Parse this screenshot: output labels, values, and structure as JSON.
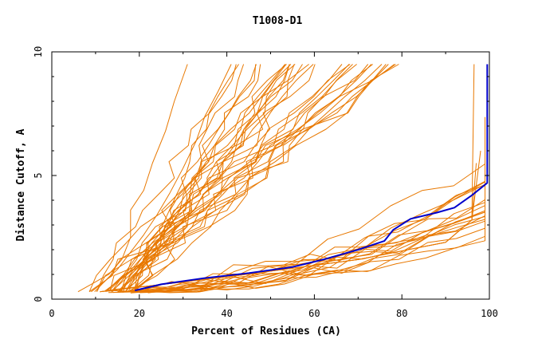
{
  "chart_data": {
    "type": "line",
    "title": "T1008-D1",
    "xlabel": "Percent of Residues (CA)",
    "ylabel": "Distance Cutoff, A",
    "xlim": [
      0,
      100
    ],
    "ylim": [
      0,
      10
    ],
    "xticks": [
      0,
      20,
      40,
      60,
      80,
      100
    ],
    "yticks": [
      0,
      5,
      10
    ],
    "grid": false,
    "legend": "none",
    "colors": {
      "others": "#e87800",
      "highlight": "#0000cc"
    },
    "highlight_series": [
      [
        19,
        0.35
      ],
      [
        25,
        0.6
      ],
      [
        35,
        0.85
      ],
      [
        45,
        1.05
      ],
      [
        55,
        1.3
      ],
      [
        62,
        1.6
      ],
      [
        70,
        2.0
      ],
      [
        76,
        2.35
      ],
      [
        78,
        2.8
      ],
      [
        82,
        3.25
      ],
      [
        88,
        3.5
      ],
      [
        92,
        3.7
      ],
      [
        96,
        4.2
      ],
      [
        99.5,
        4.7
      ],
      [
        99.5,
        9.5
      ]
    ],
    "series_groups": [
      [
        [
          6,
          0.3
        ],
        [
          9,
          0.6
        ],
        [
          13,
          1.0
        ],
        [
          16,
          1.6
        ],
        [
          18,
          2.5
        ],
        [
          18,
          3.6
        ],
        [
          21,
          4.4
        ],
        [
          23,
          5.5
        ],
        [
          26,
          6.8
        ],
        [
          28,
          8.0
        ],
        [
          31,
          9.5
        ]
      ],
      [
        [
          9,
          0.3
        ],
        [
          12,
          0.7
        ],
        [
          15,
          1.2
        ],
        [
          18,
          1.9
        ],
        [
          21,
          2.6
        ],
        [
          24,
          3.4
        ],
        [
          27,
          4.3
        ],
        [
          30,
          5.3
        ],
        [
          33,
          6.4
        ],
        [
          35,
          7.4
        ],
        [
          38,
          8.4
        ],
        [
          41,
          9.5
        ]
      ]
    ]
  }
}
